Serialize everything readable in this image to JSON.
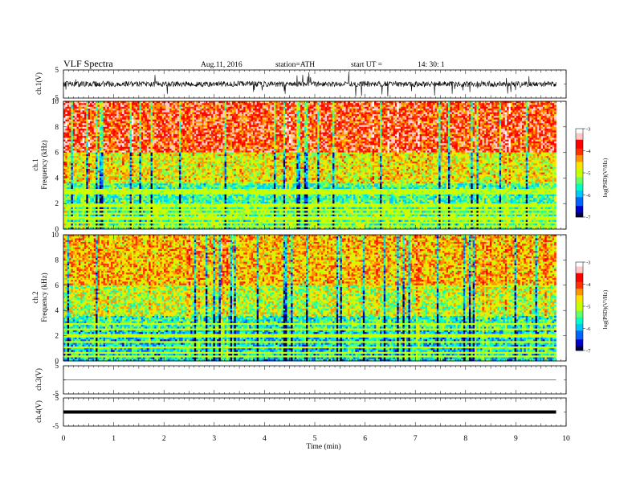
{
  "header": {
    "title": "VLF  Spectra",
    "date": "Aug.11, 2016",
    "station": "station=ATH",
    "start_label": "start  UT =",
    "start_time": "14: 30: 1"
  },
  "chart_data": [
    {
      "id": "ch1_waveform",
      "type": "line",
      "ylabel": "ch.1(V)",
      "ylim": [
        -5,
        5
      ],
      "yticks": [
        "5",
        "-5"
      ],
      "trace_color": "#000000",
      "description_values": {
        "baseline": 0,
        "typical_spread": 2,
        "max_spike": 4.5
      }
    },
    {
      "id": "ch1_spectrogram",
      "type": "heatmap",
      "ylabel": "ch.1",
      "ylabel2": "Frequency  (kHz)",
      "ylim": [
        0,
        10
      ],
      "yticks": [
        "0",
        "2",
        "4",
        "6",
        "8",
        "10"
      ],
      "x_range_min": [
        0,
        9.8
      ],
      "colorbar": {
        "label": "log(PSD)(V²/Hz)",
        "range": [
          -7,
          -3
        ],
        "ticks": [
          "-3",
          "-4",
          "-5",
          "-6",
          "-7"
        ]
      },
      "bands_kHz": [
        0.25,
        0.55,
        0.85,
        1.25,
        1.55,
        1.85,
        2.75,
        3.0
      ]
    },
    {
      "id": "ch2_spectrogram",
      "type": "heatmap",
      "ylabel": "ch.2",
      "ylabel2": "Frequency  (kHz)",
      "ylim": [
        0,
        10
      ],
      "yticks": [
        "0",
        "2",
        "4",
        "6",
        "8",
        "10"
      ],
      "x_range_min": [
        0,
        9.8
      ],
      "colorbar": {
        "label": "log(PSD)(V²/Hz)",
        "range": [
          -7,
          -3
        ],
        "ticks": [
          "-3",
          "-4",
          "-5",
          "-6",
          "-7"
        ]
      },
      "bands_kHz": [
        0.35,
        0.7,
        1.1,
        1.45,
        2.0,
        2.55,
        2.9
      ]
    },
    {
      "id": "ch3_waveform",
      "type": "line",
      "ylabel": "ch.3(V)",
      "ylim": [
        -5,
        5
      ],
      "yticks": [
        "5",
        "-5"
      ],
      "values": [
        0,
        0
      ]
    },
    {
      "id": "ch4_waveform",
      "type": "line",
      "ylabel": "ch.4(V)",
      "ylim": [
        -5,
        5
      ],
      "yticks": [
        "5",
        "-5"
      ],
      "values": [
        0,
        0
      ]
    }
  ],
  "xaxis": {
    "label": "Time  (min)",
    "range": [
      0,
      10
    ],
    "ticks": [
      "0",
      "1",
      "2",
      "3",
      "4",
      "5",
      "6",
      "7",
      "8",
      "9",
      "10"
    ]
  },
  "colormap": [
    "#000040",
    "#0000c8",
    "#0064ff",
    "#00c8ff",
    "#00ffc8",
    "#64ff64",
    "#c8ff00",
    "#ffe100",
    "#ff9600",
    "#ff3200",
    "#ff0000",
    "#ffc8c8",
    "#ffffff"
  ]
}
